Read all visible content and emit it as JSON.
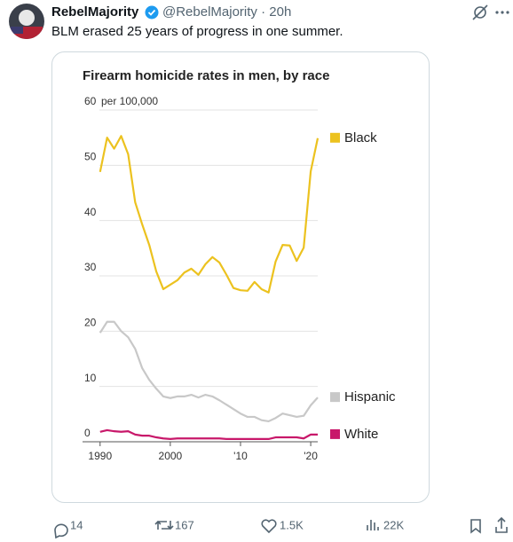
{
  "tweet": {
    "name": "RebelMajority",
    "handle_line": "@RebelMajority · 20h",
    "text": "BLM erased 25 years of progress in one summer."
  },
  "actions": {
    "replies": 14,
    "retweets": 167,
    "likes": "1.5K",
    "views": "22K"
  },
  "chart_data": {
    "type": "line",
    "title": "Firearm homicide rates in men, by race",
    "y_unit": "per 100,000",
    "x": [
      1990,
      1991,
      1992,
      1993,
      1994,
      1995,
      1996,
      1997,
      1998,
      1999,
      2000,
      2001,
      2002,
      2003,
      2004,
      2005,
      2006,
      2007,
      2008,
      2009,
      2010,
      2011,
      2012,
      2013,
      2014,
      2015,
      2016,
      2017,
      2018,
      2019,
      2020,
      2021
    ],
    "series": [
      {
        "name": "Black",
        "color": "#ecc21f",
        "values": [
          48.8,
          55,
          53,
          55.3,
          52,
          43.3,
          39.3,
          35.6,
          30.8,
          27.6,
          28.4,
          29.2,
          30.6,
          31.3,
          30.2,
          32.1,
          33.4,
          32.4,
          30.2,
          27.8,
          27.4,
          27.3,
          28.9,
          27.6,
          27,
          32.6,
          35.6,
          35.5,
          32.7,
          35.1,
          48.9,
          54.9
        ]
      },
      {
        "name": "Hispanic",
        "color": "#c8c8c8",
        "values": [
          19.7,
          21.7,
          21.7,
          20,
          18.9,
          16.8,
          13.3,
          11.2,
          9.6,
          8.2,
          7.9,
          8.2,
          8.2,
          8.5,
          8,
          8.5,
          8.2,
          7.5,
          6.7,
          5.9,
          5.1,
          4.5,
          4.5,
          3.9,
          3.7,
          4.3,
          5.1,
          4.8,
          4.5,
          4.7,
          6.6,
          8
        ]
      },
      {
        "name": "White",
        "color": "#c8186a",
        "values": [
          1.8,
          2.1,
          1.9,
          1.8,
          1.9,
          1.3,
          1.1,
          1.1,
          0.8,
          0.6,
          0.5,
          0.6,
          0.6,
          0.6,
          0.6,
          0.6,
          0.6,
          0.6,
          0.5,
          0.5,
          0.5,
          0.5,
          0.5,
          0.5,
          0.5,
          0.8,
          0.8,
          0.8,
          0.8,
          0.6,
          1.3,
          1.3
        ]
      }
    ],
    "xlim": [
      1987.5,
      2021
    ],
    "xticks": [
      1990,
      2000,
      {
        "value": 2010,
        "label": "'10"
      },
      {
        "value": 2020,
        "label": "'20"
      }
    ],
    "ylim": [
      0,
      60
    ],
    "yticks": [
      0,
      10,
      20,
      30,
      40,
      50,
      60
    ],
    "grid": true,
    "legend": "right"
  }
}
